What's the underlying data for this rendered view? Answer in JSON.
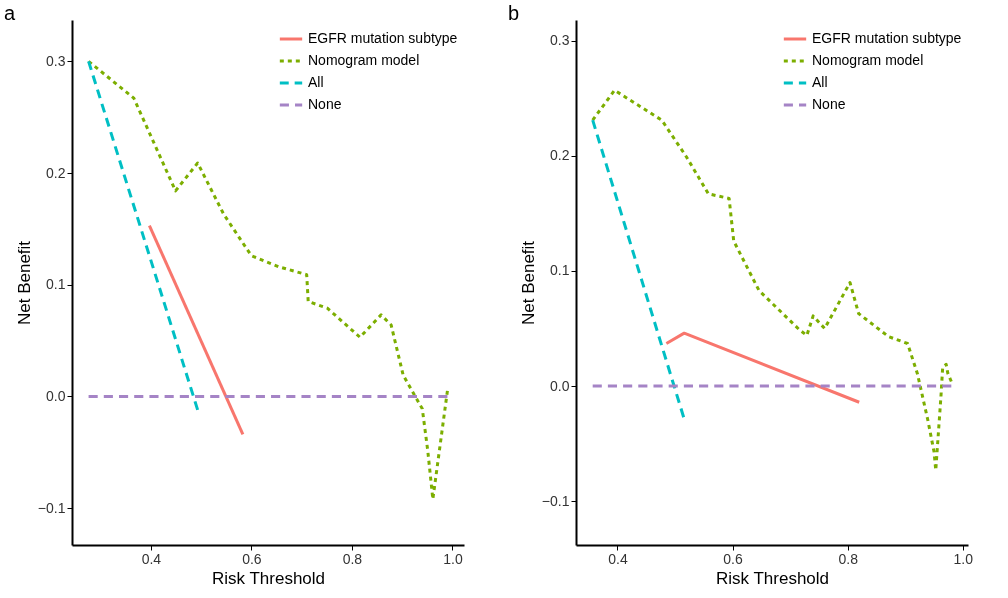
{
  "chart_data": [
    {
      "type": "line",
      "title": "a",
      "xlabel": "Risk Threshold",
      "ylabel": "Net Benefit",
      "xlim": [
        0.243,
        1.023
      ],
      "ylim": [
        -0.133,
        0.337
      ],
      "xticks": [
        0.4,
        0.6,
        0.8,
        {
          "value": 1,
          "label": "1.0"
        }
      ],
      "yticks": [
        -0.1,
        {
          "value": 0,
          "label": "0.0"
        },
        0.1,
        0.2,
        0.3
      ],
      "grid": false,
      "legend": "top right",
      "series": [
        {
          "name": "EGFR mutation subtype",
          "color": "#f8766d",
          "line_style": "solid",
          "x": [
            0.397,
            0.583
          ],
          "values": [
            0.153,
            -0.034
          ]
        },
        {
          "name": "Nomogram model",
          "color": "#7cae00",
          "line_style": "dotted",
          "x": [
            0.276,
            0.366,
            0.39,
            0.449,
            0.493,
            0.545,
            0.579,
            0.6,
            0.655,
            0.71,
            0.713,
            0.751,
            0.816,
            0.858,
            0.878,
            0.902,
            0.926,
            0.94,
            0.951,
            0.961,
            0.99
          ],
          "values": [
            0.3,
            0.267,
            0.243,
            0.184,
            0.209,
            0.163,
            0.14,
            0.126,
            0.116,
            0.109,
            0.085,
            0.079,
            0.053,
            0.073,
            0.064,
            0.019,
            0,
            -0.011,
            -0.049,
            -0.092,
            0.005
          ]
        },
        {
          "name": "All",
          "color": "#00bfc4",
          "line_style": "dashed",
          "x": [
            0.276,
            0.493
          ],
          "values": [
            0.3,
            -0.012
          ]
        },
        {
          "name": "None",
          "color": "#a584c6",
          "line_style": "dashed",
          "x": [
            0.276,
            0.99
          ],
          "values": [
            0,
            0
          ]
        }
      ]
    },
    {
      "type": "line",
      "title": "b",
      "xlabel": "Risk Threshold",
      "ylabel": "Net Benefit",
      "xlim": [
        0.328,
        1.009
      ],
      "ylim": [
        -0.138,
        0.318
      ],
      "xticks": [
        0.4,
        0.6,
        0.8,
        {
          "value": 1,
          "label": "1.0"
        }
      ],
      "yticks": [
        -0.1,
        {
          "value": 0,
          "label": "0.0"
        },
        0.1,
        0.2,
        0.3
      ],
      "grid": false,
      "legend": "top right",
      "series": [
        {
          "name": "EGFR mutation subtype",
          "color": "#f8766d",
          "line_style": "solid",
          "x": [
            0.485,
            0.516,
            0.82
          ],
          "values": [
            0.037,
            0.046,
            -0.014
          ]
        },
        {
          "name": "Nomogram model",
          "color": "#7cae00",
          "line_style": "dotted",
          "x": [
            0.357,
            0.395,
            0.477,
            0.52,
            0.558,
            0.594,
            0.602,
            0.646,
            0.716,
            0.729,
            0.74,
            0.76,
            0.804,
            0.819,
            0.871,
            0.904,
            0.921,
            0.939,
            0.95,
            0.953,
            0.962,
            0.965,
            0.971,
            0.974,
            0.98
          ],
          "values": [
            0.231,
            0.257,
            0.231,
            0.199,
            0.167,
            0.163,
            0.126,
            0.083,
            0.049,
            0.044,
            0.061,
            0.05,
            0.09,
            0.063,
            0.043,
            0.037,
            0.011,
            -0.029,
            -0.057,
            -0.073,
            -0.009,
            0.016,
            0.019,
            0.011,
            0.004
          ]
        },
        {
          "name": "All",
          "color": "#00bfc4",
          "line_style": "dashed",
          "x": [
            0.357,
            0.515
          ],
          "values": [
            0.231,
            -0.027
          ]
        },
        {
          "name": "None",
          "color": "#a584c6",
          "line_style": "dashed",
          "x": [
            0.357,
            0.98
          ],
          "values": [
            0,
            0
          ]
        }
      ]
    }
  ]
}
